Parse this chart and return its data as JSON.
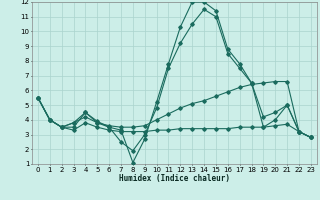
{
  "xlabel": "Humidex (Indice chaleur)",
  "bg_color": "#cceee8",
  "grid_color": "#aad4ce",
  "line_color": "#1a6b5e",
  "xlim": [
    -0.5,
    23.5
  ],
  "ylim": [
    1,
    12
  ],
  "xticks": [
    0,
    1,
    2,
    3,
    4,
    5,
    6,
    7,
    8,
    9,
    10,
    11,
    12,
    13,
    14,
    15,
    16,
    17,
    18,
    19,
    20,
    21,
    22,
    23
  ],
  "yticks": [
    1,
    2,
    3,
    4,
    5,
    6,
    7,
    8,
    9,
    10,
    11,
    12
  ],
  "series": [
    {
      "x": [
        0,
        1,
        2,
        3,
        4,
        5,
        6,
        7,
        8,
        9,
        10,
        11,
        12,
        13,
        14,
        15,
        16,
        17,
        18,
        19,
        20,
        21,
        22,
        23
      ],
      "y": [
        5.5,
        4.0,
        3.5,
        3.5,
        4.5,
        3.8,
        3.5,
        3.3,
        1.1,
        2.7,
        5.2,
        7.8,
        10.3,
        12.0,
        12.0,
        11.4,
        8.8,
        7.8,
        6.5,
        3.5,
        4.0,
        5.0,
        3.2,
        2.8
      ]
    },
    {
      "x": [
        0,
        1,
        2,
        3,
        4,
        5,
        6,
        7,
        8,
        9,
        10,
        11,
        12,
        13,
        14,
        15,
        16,
        17,
        18,
        19,
        20,
        21,
        22,
        23
      ],
      "y": [
        5.5,
        4.0,
        3.5,
        3.8,
        4.2,
        3.8,
        3.6,
        3.5,
        3.5,
        3.6,
        4.0,
        4.4,
        4.8,
        5.1,
        5.3,
        5.6,
        5.9,
        6.2,
        6.4,
        6.5,
        6.6,
        6.6,
        3.2,
        2.8
      ]
    },
    {
      "x": [
        0,
        1,
        2,
        3,
        4,
        5,
        6,
        7,
        8,
        9,
        10,
        11,
        12,
        13,
        14,
        15,
        16,
        17,
        18,
        19,
        20,
        21,
        22,
        23
      ],
      "y": [
        5.5,
        4.0,
        3.5,
        3.3,
        3.8,
        3.5,
        3.3,
        3.2,
        3.2,
        3.2,
        3.3,
        3.3,
        3.4,
        3.4,
        3.4,
        3.4,
        3.4,
        3.5,
        3.5,
        3.5,
        3.6,
        3.7,
        3.2,
        2.8
      ]
    },
    {
      "x": [
        0,
        1,
        2,
        3,
        4,
        5,
        6,
        7,
        8,
        9,
        10,
        11,
        12,
        13,
        14,
        15,
        16,
        17,
        18,
        19,
        20,
        21,
        22,
        23
      ],
      "y": [
        5.5,
        4.0,
        3.5,
        3.8,
        4.5,
        3.9,
        3.5,
        2.5,
        1.9,
        3.0,
        4.8,
        7.5,
        9.2,
        10.5,
        11.5,
        11.0,
        8.5,
        7.5,
        6.5,
        4.2,
        4.5,
        5.0,
        3.2,
        2.8
      ]
    }
  ]
}
